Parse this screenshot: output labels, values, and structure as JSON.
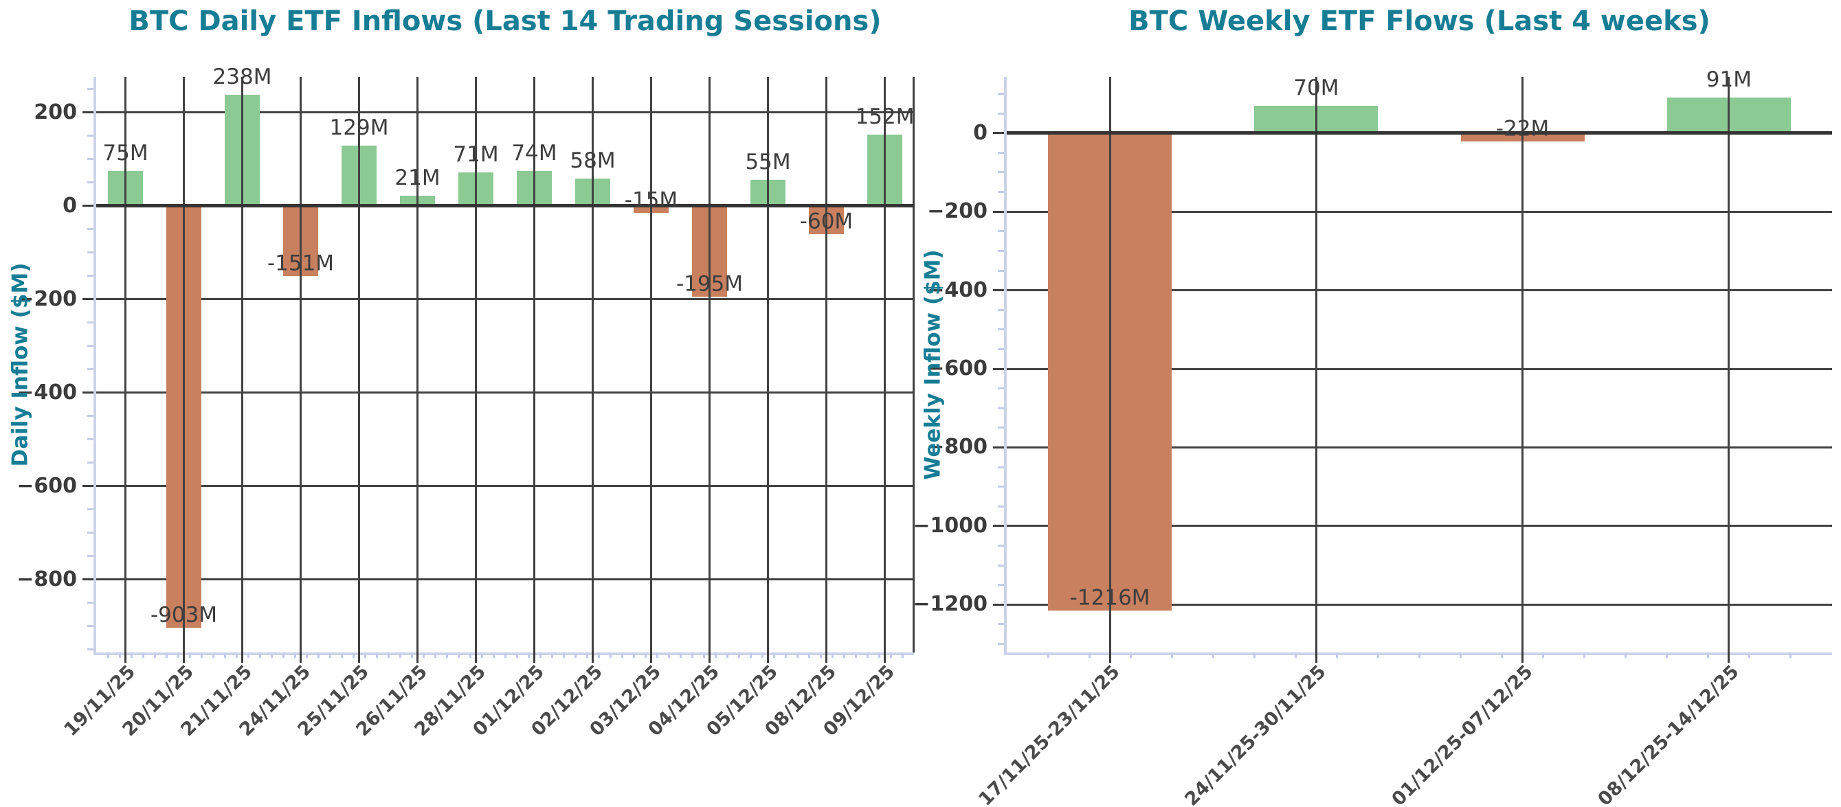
{
  "style": {
    "accent_teal": "#177d95",
    "positive_bar": "#8bca93",
    "negative_bar": "#c9805f",
    "grid_color": "#424242",
    "zero_line_color": "#343434",
    "tick_color": "#3d3d3d",
    "tick_label_color": "#3b3b3b",
    "bar_label_color": "#3d3d3d",
    "date_label_color": "#4a4a4a",
    "spine_color": "#ccd3e8",
    "minor_tick_color": "#c4cce6",
    "background": "#ffffff"
  },
  "chart_data": [
    {
      "type": "bar",
      "title": "BTC Daily ETF Inflows (Last 14 Trading Sessions)",
      "ylabel": "Daily Inflow ($M)",
      "xlabel": "",
      "categories": [
        "19/11/25",
        "20/11/25",
        "21/11/25",
        "24/11/25",
        "25/11/25",
        "26/11/25",
        "28/11/25",
        "01/12/25",
        "02/12/25",
        "03/12/25",
        "04/12/25",
        "05/12/25",
        "08/12/25",
        "09/12/25"
      ],
      "values": [
        75,
        -903,
        238,
        -151,
        129,
        21,
        71,
        74,
        58,
        -15,
        -195,
        55,
        -60,
        152
      ],
      "bar_labels": [
        "75M",
        "-903M",
        "238M",
        "-151M",
        "129M",
        "21M",
        "71M",
        "74M",
        "58M",
        "-15M",
        "-195M",
        "55M",
        "-60M",
        "152M"
      ],
      "yticks": [
        200,
        0,
        -200,
        -400,
        -600,
        -800
      ],
      "ytick_labels": [
        "200",
        "0",
        "−200",
        "−400",
        "−600",
        "−800"
      ],
      "ylim": [
        -956,
        276
      ],
      "grid": true,
      "legend": null
    },
    {
      "type": "bar",
      "title": "BTC Weekly ETF Flows (Last 4 weeks)",
      "ylabel": "Weekly Inflow ($M)",
      "xlabel": "",
      "categories": [
        "17/11/25-23/11/25",
        "24/11/25-30/11/25",
        "01/12/25-07/12/25",
        "08/12/25-14/12/25"
      ],
      "values": [
        -1216,
        70,
        -22,
        91
      ],
      "bar_labels": [
        "-1216M",
        "70M",
        "-22M",
        "91M"
      ],
      "yticks": [
        0,
        -200,
        -400,
        -600,
        -800,
        -1000,
        -1200
      ],
      "ytick_labels": [
        "0",
        "−200",
        "−400",
        "−600",
        "−800",
        "−1000",
        "−1200"
      ],
      "ylim": [
        -1322,
        143
      ],
      "grid": true,
      "legend": null
    }
  ]
}
